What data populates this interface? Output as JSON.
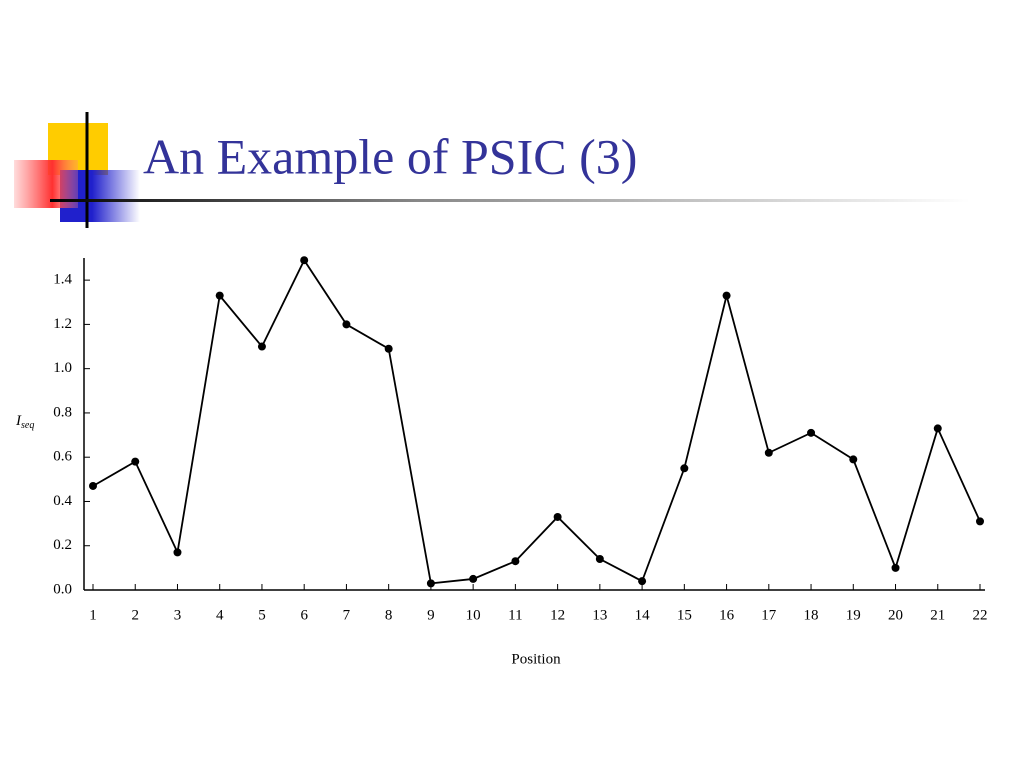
{
  "title": "An Example of PSIC (3)",
  "chart_data": {
    "type": "line",
    "xlabel": "Position",
    "ylabel": "I",
    "ylabel_subscript": "seq",
    "x": [
      1,
      2,
      3,
      4,
      5,
      6,
      7,
      8,
      9,
      10,
      11,
      12,
      13,
      14,
      15,
      16,
      17,
      18,
      19,
      20,
      21,
      22
    ],
    "values": [
      0.47,
      0.58,
      0.17,
      1.33,
      1.1,
      1.49,
      1.2,
      1.09,
      0.03,
      0.05,
      0.13,
      0.33,
      0.14,
      0.04,
      0.55,
      1.33,
      0.62,
      0.71,
      0.59,
      0.1,
      0.73,
      0.31
    ],
    "color": "#000000",
    "xlim": [
      1,
      22
    ],
    "xticks": [
      1,
      2,
      3,
      4,
      5,
      6,
      7,
      8,
      9,
      10,
      11,
      12,
      13,
      14,
      15,
      16,
      17,
      18,
      19,
      20,
      21,
      22
    ],
    "ylim": [
      0,
      1.5
    ],
    "yticks": [
      {
        "value": 0,
        "label": "0.0"
      },
      0.2,
      0.4,
      0.6,
      0.8,
      {
        "value": 1,
        "label": "1.0"
      },
      1.2,
      1.4
    ],
    "grid": false
  }
}
